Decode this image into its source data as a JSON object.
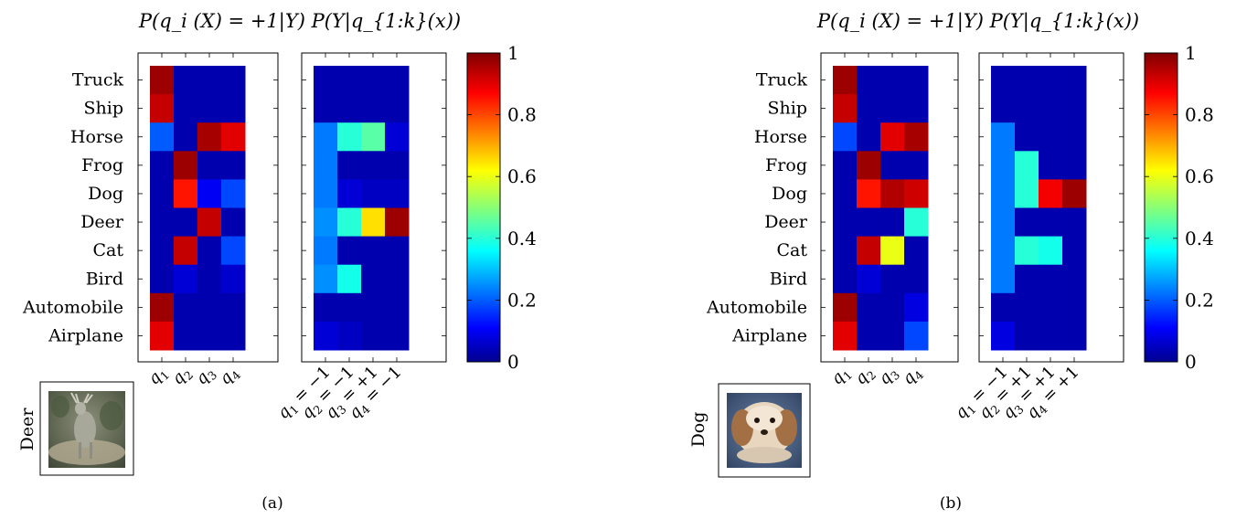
{
  "chart_data": [
    {
      "type": "heatmap",
      "panel": "(a)",
      "title": "P(q_i (X) = +1|Y) P(Y|q_{1:k}(x))",
      "colorscale": "jet",
      "zlim": [
        0,
        1
      ],
      "colorbar_ticks": [
        "0",
        "0.2",
        "0.4",
        "0.6",
        "0.8",
        "1"
      ],
      "classes": [
        "Truck",
        "Ship",
        "Horse",
        "Frog",
        "Dog",
        "Deer",
        "Cat",
        "Bird",
        "Automobile",
        "Airplane"
      ],
      "image_label": "Deer",
      "left_heatmap": {
        "columns": [
          "q1",
          "q2",
          "q3",
          "q4"
        ],
        "values": [
          [
            0.97,
            0.03,
            0.03,
            0.03
          ],
          [
            0.93,
            0.03,
            0.03,
            0.03
          ],
          [
            0.2,
            0.03,
            0.96,
            0.9
          ],
          [
            0.03,
            0.97,
            0.03,
            0.03
          ],
          [
            0.03,
            0.85,
            0.1,
            0.18
          ],
          [
            0.03,
            0.03,
            0.93,
            0.03
          ],
          [
            0.03,
            0.93,
            0.03,
            0.18
          ],
          [
            0.03,
            0.07,
            0.03,
            0.06
          ],
          [
            0.97,
            0.03,
            0.03,
            0.03
          ],
          [
            0.9,
            0.03,
            0.03,
            0.03
          ]
        ]
      },
      "right_heatmap": {
        "columns": [
          "q1 = −1",
          "q2 = −1",
          "q3 = +1",
          "q4 = −1"
        ],
        "values": [
          [
            0.03,
            0.03,
            0.03,
            0.03
          ],
          [
            0.03,
            0.03,
            0.03,
            0.03
          ],
          [
            0.23,
            0.4,
            0.45,
            0.07
          ],
          [
            0.23,
            0.03,
            0.03,
            0.03
          ],
          [
            0.23,
            0.07,
            0.05,
            0.05
          ],
          [
            0.25,
            0.4,
            0.65,
            0.97
          ],
          [
            0.23,
            0.03,
            0.03,
            0.03
          ],
          [
            0.25,
            0.38,
            0.03,
            0.03
          ],
          [
            0.03,
            0.03,
            0.03,
            0.03
          ],
          [
            0.07,
            0.05,
            0.03,
            0.03
          ]
        ]
      }
    },
    {
      "type": "heatmap",
      "panel": "(b)",
      "title": "P(q_i (X) = +1|Y) P(Y|q_{1:k}(x))",
      "colorscale": "jet",
      "zlim": [
        0,
        1
      ],
      "colorbar_ticks": [
        "0",
        "0.2",
        "0.4",
        "0.6",
        "0.8",
        "1"
      ],
      "classes": [
        "Truck",
        "Ship",
        "Horse",
        "Frog",
        "Dog",
        "Deer",
        "Cat",
        "Bird",
        "Automobile",
        "Airplane"
      ],
      "image_label": "Dog",
      "left_heatmap": {
        "columns": [
          "q1",
          "q2",
          "q3",
          "q4"
        ],
        "values": [
          [
            0.97,
            0.03,
            0.03,
            0.03
          ],
          [
            0.93,
            0.03,
            0.03,
            0.03
          ],
          [
            0.18,
            0.03,
            0.9,
            0.96
          ],
          [
            0.03,
            0.97,
            0.03,
            0.03
          ],
          [
            0.03,
            0.85,
            0.95,
            0.92
          ],
          [
            0.03,
            0.03,
            0.03,
            0.4
          ],
          [
            0.03,
            0.93,
            0.6,
            0.03
          ],
          [
            0.03,
            0.07,
            0.03,
            0.03
          ],
          [
            0.97,
            0.03,
            0.03,
            0.08
          ],
          [
            0.9,
            0.03,
            0.03,
            0.18
          ]
        ]
      },
      "right_heatmap": {
        "columns": [
          "q1 = −1",
          "q2 = +1",
          "q3 = +1",
          "q4 = +1"
        ],
        "values": [
          [
            0.03,
            0.03,
            0.03,
            0.03
          ],
          [
            0.03,
            0.03,
            0.03,
            0.03
          ],
          [
            0.23,
            0.03,
            0.03,
            0.03
          ],
          [
            0.23,
            0.4,
            0.03,
            0.03
          ],
          [
            0.23,
            0.4,
            0.88,
            0.97
          ],
          [
            0.23,
            0.03,
            0.03,
            0.03
          ],
          [
            0.23,
            0.4,
            0.38,
            0.03
          ],
          [
            0.23,
            0.03,
            0.03,
            0.03
          ],
          [
            0.03,
            0.03,
            0.03,
            0.03
          ],
          [
            0.08,
            0.03,
            0.03,
            0.03
          ]
        ]
      }
    }
  ]
}
